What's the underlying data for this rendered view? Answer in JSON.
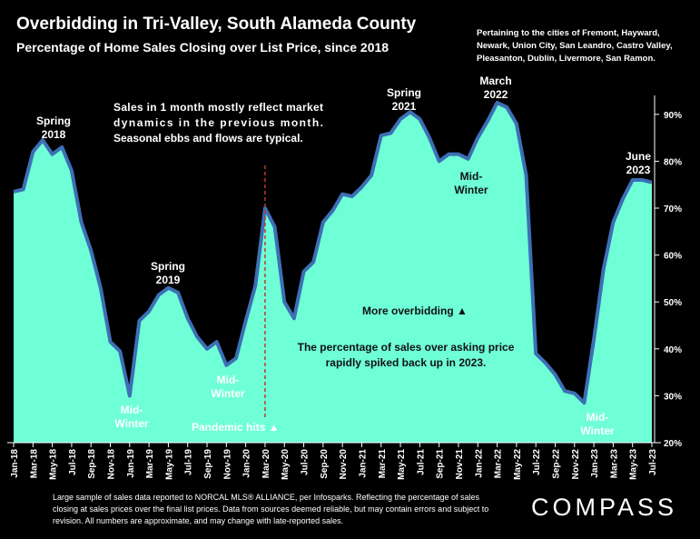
{
  "title": "Overbidding in Tri-Valley, South Alameda County",
  "subtitle": "Percentage of Home Sales Closing over List Price, since 2018",
  "note_right": "Pertaining to the cities of Fremont, Hayward, Newark, Union City, San Leandro, Castro Valley, Pleasanton, Dublin, Livermore, San Ramon.",
  "footnote": "Large sample of sales data reported to NORCAL MLS® ALLIANCE, per Infosparks. Reflecting the percentage of sales closing at sales prices over the final list prices. Data from sources deemed reliable, but may contain errors and subject to revision. All numbers are approximate, and may change with late-reported sales.",
  "logo": "COMPASS",
  "colors": {
    "fill": "#6effd6",
    "line": "#3d6fb5",
    "background": "#000000",
    "marker": "#c0392b"
  },
  "chart_data": {
    "type": "area",
    "title": "Overbidding in Tri-Valley, South Alameda County",
    "subtitle": "Percentage of Home Sales Closing over List Price, since 2018",
    "x_tick_labels": [
      "Jan-18",
      "Mar-18",
      "May-18",
      "Jul-18",
      "Sep-18",
      "Nov-18",
      "Jan-19",
      "Mar-19",
      "May-19",
      "Jul-19",
      "Sep-19",
      "Nov-19",
      "Jan-20",
      "Mar-20",
      "May-20",
      "Jul-20",
      "Sep-20",
      "Nov-20",
      "Jan-21",
      "Mar-21",
      "May-21",
      "Jul-21",
      "Sep-21",
      "Nov-21",
      "Jan-22",
      "Mar-22",
      "May-22",
      "Jul-22",
      "Sep-22",
      "Nov-22",
      "Jan-23",
      "Mar-23",
      "May-23",
      "Jul-23"
    ],
    "x": [
      "Jan-18",
      "Feb-18",
      "Mar-18",
      "Apr-18",
      "May-18",
      "Jun-18",
      "Jul-18",
      "Aug-18",
      "Sep-18",
      "Oct-18",
      "Nov-18",
      "Dec-18",
      "Jan-19",
      "Feb-19",
      "Mar-19",
      "Apr-19",
      "May-19",
      "Jun-19",
      "Jul-19",
      "Aug-19",
      "Sep-19",
      "Oct-19",
      "Nov-19",
      "Dec-19",
      "Jan-20",
      "Feb-20",
      "Mar-20",
      "Apr-20",
      "May-20",
      "Jun-20",
      "Jul-20",
      "Aug-20",
      "Sep-20",
      "Oct-20",
      "Nov-20",
      "Dec-20",
      "Jan-21",
      "Feb-21",
      "Mar-21",
      "Apr-21",
      "May-21",
      "Jun-21",
      "Jul-21",
      "Aug-21",
      "Sep-21",
      "Oct-21",
      "Nov-21",
      "Dec-21",
      "Jan-22",
      "Feb-22",
      "Mar-22",
      "Apr-22",
      "May-22",
      "Jun-22",
      "Jul-22",
      "Aug-22",
      "Sep-22",
      "Oct-22",
      "Nov-22",
      "Dec-22",
      "Jan-23",
      "Feb-23",
      "Mar-23",
      "Apr-23",
      "May-23",
      "Jun-23",
      "Jul-23"
    ],
    "values": [
      73.5,
      74,
      82,
      84.5,
      81.5,
      83,
      78,
      67,
      61,
      53,
      41.5,
      39.5,
      30,
      46,
      48,
      51.5,
      53,
      52,
      46.5,
      42.5,
      40,
      41.5,
      36.5,
      38,
      46,
      53.5,
      70,
      66,
      50,
      46.5,
      56.5,
      58.5,
      67,
      69.5,
      73,
      72.5,
      74.5,
      77,
      85.5,
      86,
      89,
      90.5,
      89,
      85,
      80,
      81.5,
      81.5,
      80.5,
      85,
      88.5,
      92.5,
      91.5,
      88,
      77,
      39,
      37,
      34.5,
      31,
      30.5,
      28.5,
      42,
      57,
      67,
      72,
      76,
      76,
      75.5
    ],
    "y_tick_labels": [
      "20%",
      "30%",
      "40%",
      "50%",
      "60%",
      "70%",
      "80%",
      "90%"
    ],
    "ylim": [
      20,
      95
    ],
    "grid": false,
    "annotations": [
      {
        "id": "spring18",
        "lines": [
          "Spring",
          "2018"
        ]
      },
      {
        "id": "midwinter19",
        "lines": [
          "Mid-",
          "Winter"
        ]
      },
      {
        "id": "spring19",
        "lines": [
          "Spring",
          "2019"
        ]
      },
      {
        "id": "midwinter20",
        "lines": [
          "Mid-",
          "Winter"
        ]
      },
      {
        "id": "spring21",
        "lines": [
          "Spring",
          "2021"
        ]
      },
      {
        "id": "midwinter22",
        "lines": [
          "Mid-",
          "Winter"
        ]
      },
      {
        "id": "march22",
        "lines": [
          "March",
          "2022"
        ]
      },
      {
        "id": "midwinter23",
        "lines": [
          "Mid-",
          "Winter"
        ]
      },
      {
        "id": "june23",
        "lines": [
          "June",
          "2023"
        ]
      },
      {
        "id": "sales-note",
        "lines": [
          "Sales in 1 month mostly reflect market",
          "dynamics in the previous month.",
          "Seasonal ebbs and flows are typical."
        ]
      },
      {
        "id": "pandemic",
        "lines": [
          "Pandemic hits ▲"
        ]
      },
      {
        "id": "overbidding",
        "lines": [
          "More overbidding ▲"
        ]
      },
      {
        "id": "spike-note",
        "lines": [
          "The percentage of sales over asking price",
          "rapidly spiked back up in 2023."
        ]
      }
    ],
    "marker_line": {
      "x": "Mar-20",
      "label": "Pandemic hits ▲"
    }
  }
}
